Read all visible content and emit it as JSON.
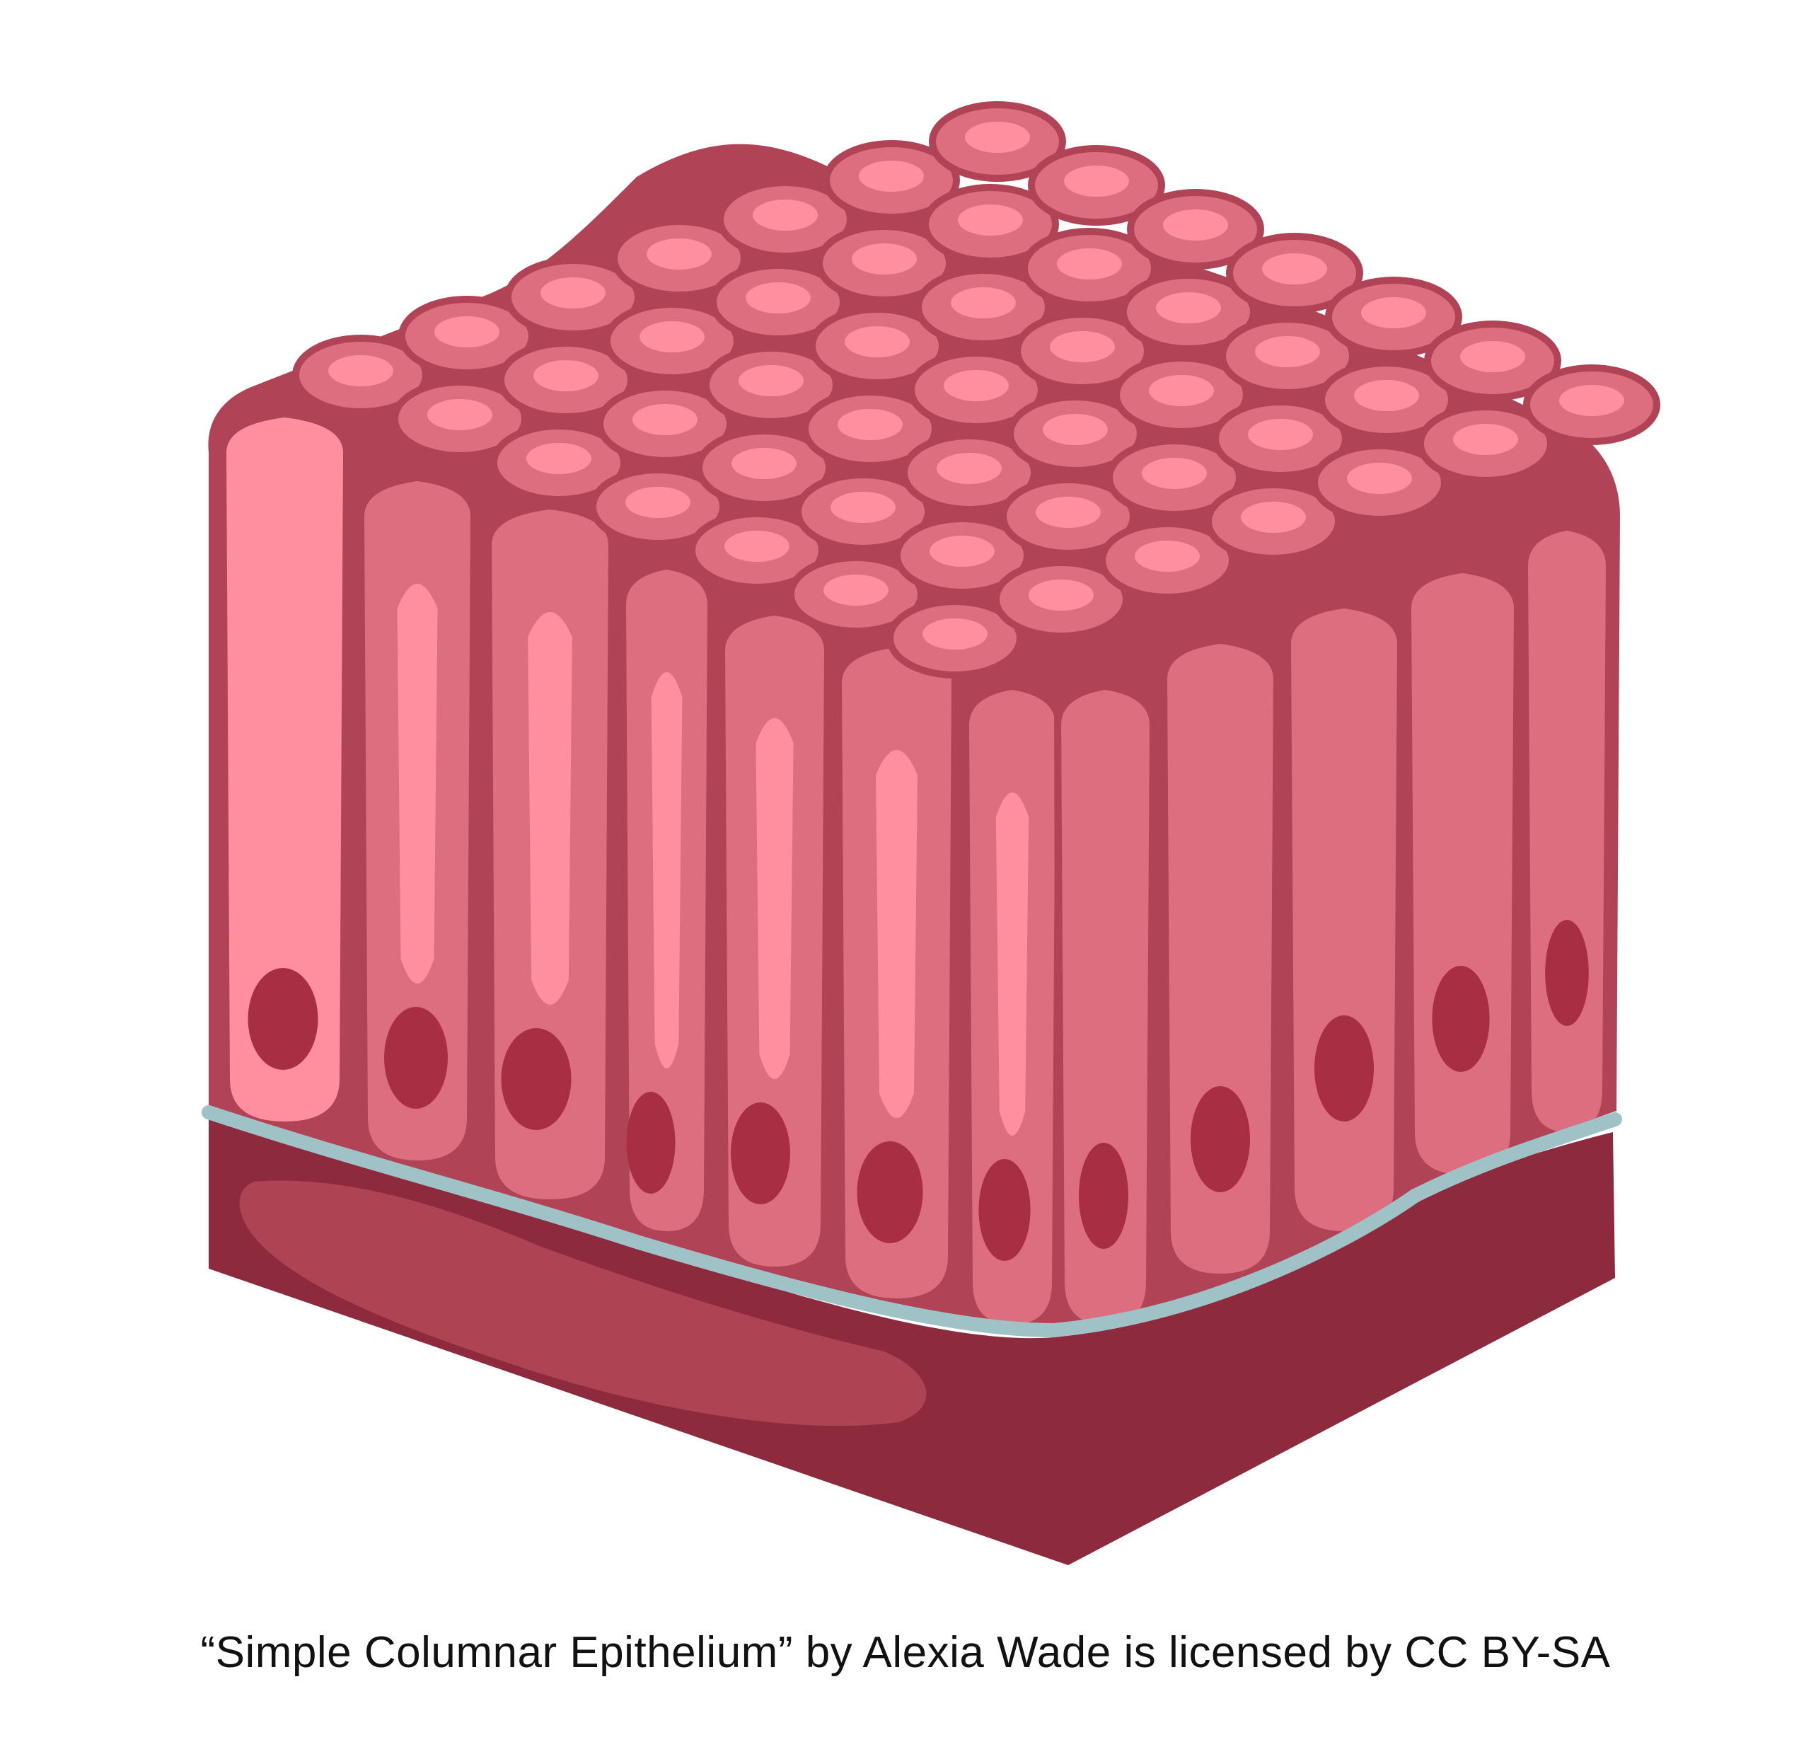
{
  "caption": "“Simple Columnar Epithelium” by Alexia Wade is licensed by CC BY-SA",
  "colors": {
    "outline": "#B04456",
    "top_cell": "#DD6E80",
    "top_nucleus": "#FF8E9F",
    "column_cell": "#DD6E80",
    "column_light": "#FF8E9F",
    "nucleus": "#A72E43",
    "basement_membrane": "#9EC2C6",
    "connective_tissue": "#8D2A3D",
    "connective_highlight": "#AE4354"
  },
  "icons": {
    "illustration": "simple-columnar-epithelium-illustration"
  }
}
